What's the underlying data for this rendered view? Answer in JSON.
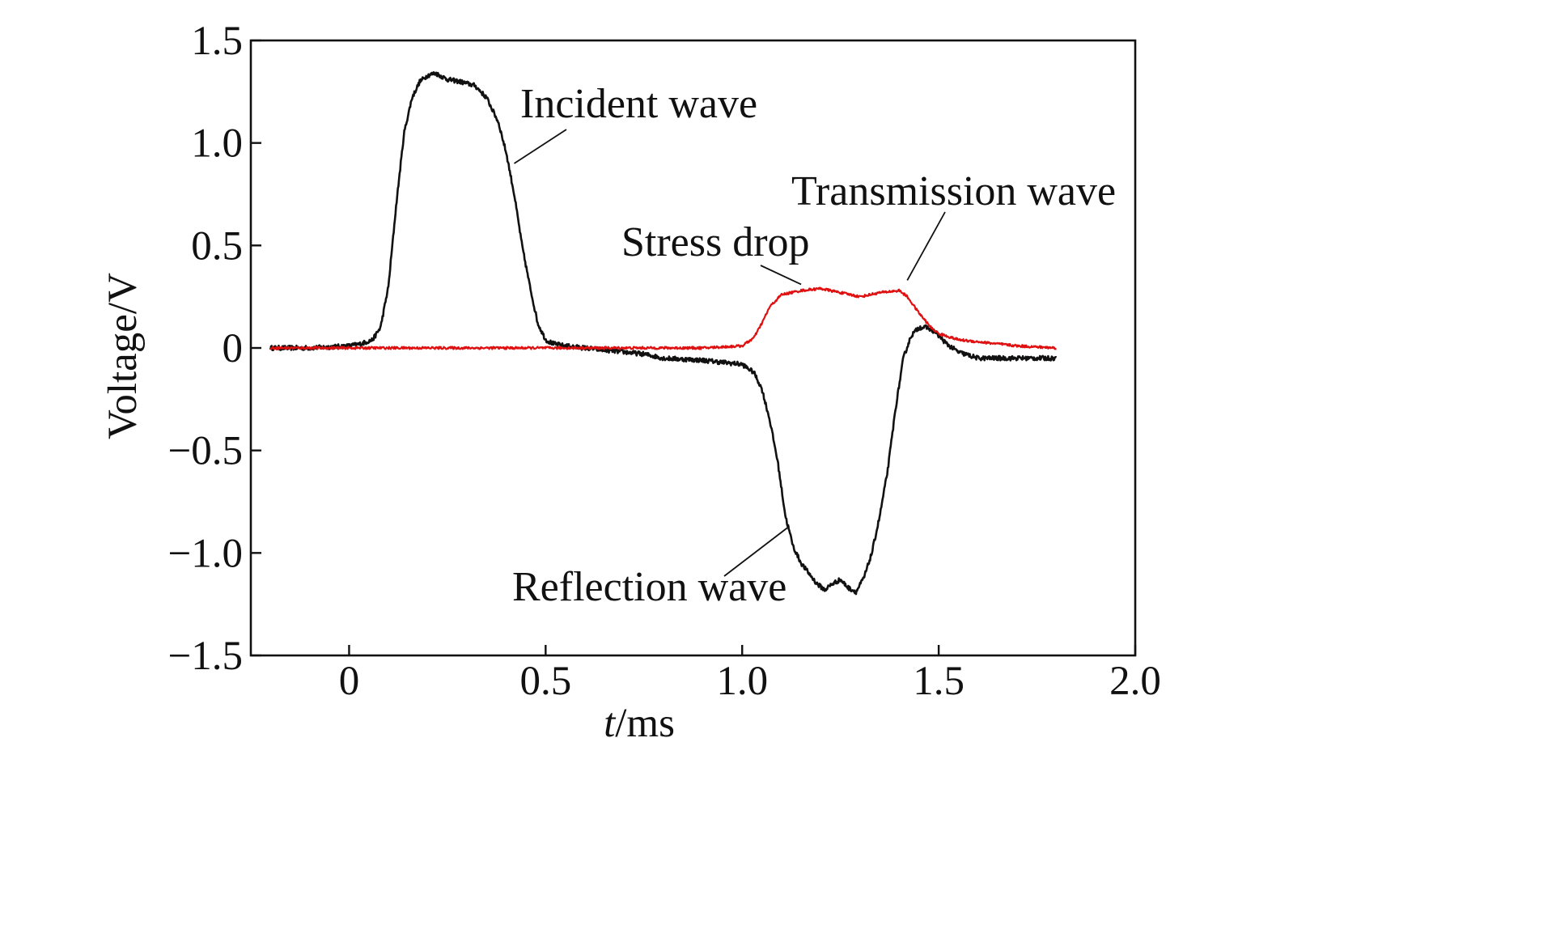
{
  "chart_data": {
    "type": "line",
    "xlabel": "t/ms",
    "xlabel_italic_part": "t",
    "xlabel_rest": "/ms",
    "ylabel": "Voltage/V",
    "xlim": [
      -0.25,
      2.0
    ],
    "ylim": [
      -1.5,
      1.5
    ],
    "x_ticks": [
      0,
      0.5,
      1.0,
      1.5,
      2.0
    ],
    "x_tick_labels": [
      "0",
      "0.5",
      "1.0",
      "1.5",
      "2.0"
    ],
    "y_ticks": [
      1.5,
      1.0,
      0.5,
      0,
      -0.5,
      -1.0,
      -1.5
    ],
    "y_tick_labels": [
      "1.5",
      "1.0",
      "0.5",
      "0",
      "−0.5",
      "−1.0",
      "−1.5"
    ],
    "grid": false,
    "series": [
      {
        "name": "Incident wave / Reflection wave",
        "color": "#111111",
        "x": [
          -0.2,
          -0.1,
          0.0,
          0.03,
          0.06,
          0.08,
          0.1,
          0.12,
          0.14,
          0.16,
          0.18,
          0.2,
          0.22,
          0.25,
          0.28,
          0.32,
          0.35,
          0.38,
          0.4,
          0.42,
          0.44,
          0.46,
          0.48,
          0.5,
          0.52,
          0.55,
          0.6,
          0.65,
          0.7,
          0.75,
          0.8,
          0.9,
          0.95,
          1.0,
          1.03,
          1.05,
          1.07,
          1.09,
          1.11,
          1.13,
          1.15,
          1.17,
          1.19,
          1.21,
          1.23,
          1.25,
          1.27,
          1.29,
          1.31,
          1.33,
          1.35,
          1.37,
          1.39,
          1.41,
          1.43,
          1.45,
          1.47,
          1.49,
          1.52,
          1.55,
          1.6,
          1.65,
          1.7,
          1.8
        ],
        "y": [
          0.0,
          0.0,
          0.01,
          0.02,
          0.04,
          0.1,
          0.3,
          0.7,
          1.05,
          1.22,
          1.3,
          1.33,
          1.34,
          1.31,
          1.3,
          1.28,
          1.22,
          1.1,
          0.95,
          0.75,
          0.5,
          0.3,
          0.12,
          0.04,
          0.02,
          0.01,
          0.0,
          -0.01,
          -0.02,
          -0.03,
          -0.05,
          -0.06,
          -0.07,
          -0.08,
          -0.12,
          -0.2,
          -0.35,
          -0.55,
          -0.82,
          -0.97,
          -1.05,
          -1.1,
          -1.15,
          -1.18,
          -1.15,
          -1.13,
          -1.17,
          -1.19,
          -1.12,
          -1.0,
          -0.82,
          -0.6,
          -0.3,
          -0.05,
          0.06,
          0.1,
          0.1,
          0.08,
          0.02,
          -0.02,
          -0.05,
          -0.05,
          -0.05,
          -0.05
        ]
      },
      {
        "name": "Transmission wave",
        "color": "#e01010",
        "x": [
          -0.2,
          0.0,
          0.5,
          0.9,
          1.0,
          1.03,
          1.05,
          1.07,
          1.1,
          1.15,
          1.2,
          1.25,
          1.3,
          1.35,
          1.4,
          1.42,
          1.45,
          1.48,
          1.5,
          1.55,
          1.6,
          1.7,
          1.8
        ],
        "y": [
          0.0,
          0.0,
          0.0,
          0.0,
          0.01,
          0.05,
          0.12,
          0.2,
          0.26,
          0.28,
          0.29,
          0.27,
          0.25,
          0.27,
          0.28,
          0.25,
          0.17,
          0.1,
          0.07,
          0.04,
          0.03,
          0.01,
          0.0
        ]
      }
    ],
    "annotations": [
      {
        "text": "Incident wave",
        "points_to": [
          0.42,
          0.9
        ]
      },
      {
        "text": "Transmission wave",
        "points_to": [
          1.42,
          0.33
        ]
      },
      {
        "text": "Stress drop",
        "points_to": [
          1.15,
          0.31
        ]
      },
      {
        "text": "Reflection wave",
        "points_to": [
          1.12,
          -0.87
        ]
      }
    ]
  }
}
